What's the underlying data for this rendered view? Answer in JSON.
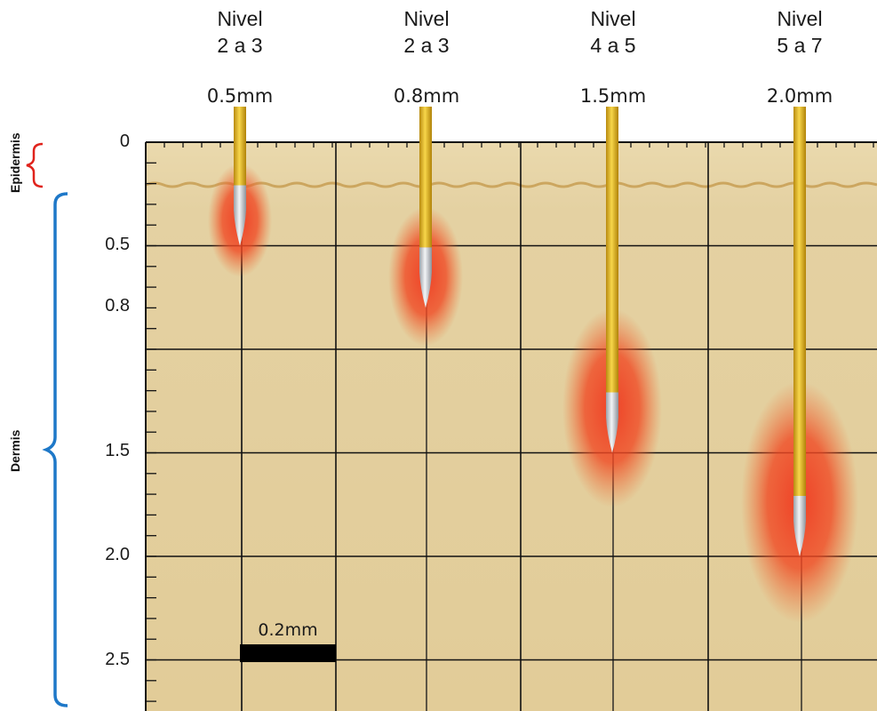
{
  "needles": [
    {
      "level_word": "Nivel",
      "level_range": "2 a 3",
      "depth_label": "0.5mm",
      "depth_mm": 0.5
    },
    {
      "level_word": "Nivel",
      "level_range": "2 a 3",
      "depth_label": "0.8mm",
      "depth_mm": 0.8
    },
    {
      "level_word": "Nivel",
      "level_range": "4 a 5",
      "depth_label": "1.5mm",
      "depth_mm": 1.5
    },
    {
      "level_word": "Nivel",
      "level_range": "5 a 7",
      "depth_label": "2.0mm",
      "depth_mm": 2.0
    }
  ],
  "y_ticks": [
    "0",
    "0.5",
    "0.8",
    "1.5",
    "2.0",
    "2.5"
  ],
  "layers": {
    "epidermis": "Epidermis",
    "dermis": "Dermis"
  },
  "scale_bar": {
    "label": "0.2mm"
  },
  "colors": {
    "skin": "#e6d2a0",
    "epidermis_bracket": "#e0231c",
    "dermis_bracket": "#1e78c8",
    "needle_gold": "#e0b21c",
    "needle_tip": "#c8ccd2",
    "heat": "#f03a20"
  }
}
